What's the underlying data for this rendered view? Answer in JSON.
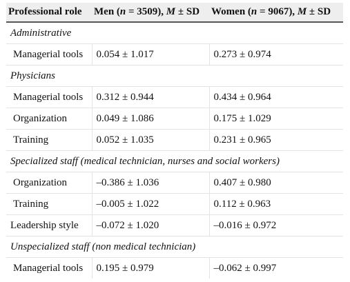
{
  "header": {
    "col_role": "Professional role",
    "col_men_prefix": "Men (",
    "col_men_n": "n",
    "col_men_count": " = 3509), ",
    "col_men_m": "M",
    "col_men_suffix": " ± SD",
    "col_women_prefix": "Women (",
    "col_women_n": "n",
    "col_women_count": " = 9067), ",
    "col_women_m": "M",
    "col_women_suffix": " ± SD"
  },
  "sections": [
    {
      "title": "Administrative",
      "rows": [
        {
          "label": "Managerial tools",
          "men": "0.054 ± 1.017",
          "women": "0.273 ± 0.974"
        }
      ]
    },
    {
      "title": "Physicians",
      "rows": [
        {
          "label": "Managerial tools",
          "men": "0.312 ± 0.944",
          "women": "0.434 ± 0.964"
        },
        {
          "label": "Organization",
          "men": "0.049 ± 1.086",
          "women": "0.175 ± 1.029"
        },
        {
          "label": "Training",
          "men": "0.052 ± 1.035",
          "women": "0.231 ± 0.965"
        }
      ]
    },
    {
      "title": "Specialized staff (medical technician, nurses and social workers)",
      "rows": [
        {
          "label": "Organization",
          "men": "–0.386 ± 1.036",
          "women": "0.407 ± 0.980"
        },
        {
          "label": "Training",
          "men": "–0.005 ± 1.022",
          "women": "0.112 ± 0.963"
        },
        {
          "label": "Leadership style",
          "men": "–0.072 ± 1.020",
          "women": "–0.016 ± 0.972"
        }
      ]
    },
    {
      "title": "Unspecialized staff (non medical technician)",
      "rows": [
        {
          "label": "Managerial tools",
          "men": "0.195 ± 0.979",
          "women": "–0.062 ± 0.997"
        }
      ]
    }
  ]
}
